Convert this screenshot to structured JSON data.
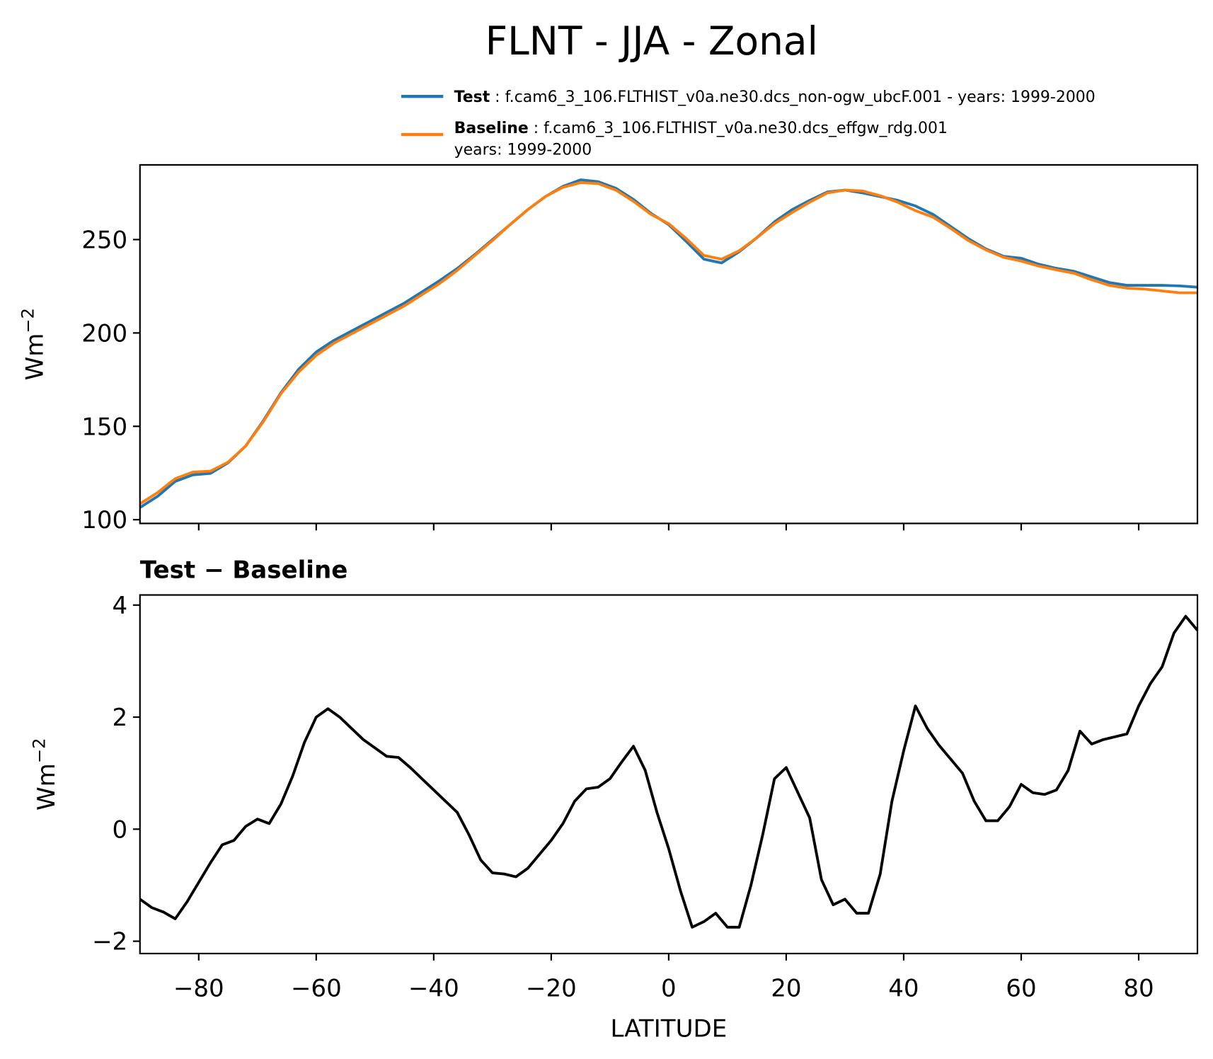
{
  "chart_data": [
    {
      "type": "line",
      "title": "FLNT - JJA - Zonal",
      "ylabel": {
        "base": "Wm",
        "sup": "−2"
      },
      "x": [
        -90,
        -87,
        -84,
        -81,
        -78,
        -75,
        -72,
        -69,
        -66,
        -63,
        -60,
        -57,
        -54,
        -51,
        -48,
        -45,
        -42,
        -39,
        -36,
        -33,
        -30,
        -27,
        -24,
        -21,
        -18,
        -15,
        -12,
        -9,
        -6,
        -3,
        0,
        3,
        6,
        9,
        12,
        15,
        18,
        21,
        24,
        27,
        30,
        33,
        36,
        39,
        42,
        45,
        48,
        51,
        54,
        57,
        60,
        63,
        66,
        69,
        72,
        75,
        78,
        81,
        84,
        87,
        90
      ],
      "series": [
        {
          "name": "Test",
          "legend_text": [
            "f.cam6_3_106.FLTHIST_v0a.ne30.dcs_non-ogw_ubcF.001 - years: 1999-2000"
          ],
          "color": "#1f77b4",
          "values": [
            106.5,
            112.5,
            120.5,
            124,
            124.8,
            130.5,
            139.5,
            153,
            168,
            180.5,
            189.8,
            196,
            201,
            206,
            211,
            216,
            222,
            228,
            234.5,
            242,
            250,
            258,
            266,
            273,
            278.5,
            282,
            281,
            277.5,
            271.5,
            264,
            258,
            249,
            239.5,
            237.5,
            243.5,
            251,
            259.5,
            266,
            271,
            275.5,
            276.5,
            275,
            273,
            271,
            268,
            263.5,
            257,
            250.5,
            245,
            241,
            240,
            236.8,
            234.6,
            233,
            230,
            227,
            225.5,
            225.5,
            225.5,
            225.2,
            224.5
          ]
        },
        {
          "name": "Baseline",
          "legend_text": [
            "f.cam6_3_106.FLTHIST_v0a.ne30.dcs_effgw_rdg.001",
            "years: 1999-2000"
          ],
          "color": "#ff7f0e",
          "values": [
            108.5,
            114.5,
            122,
            125.5,
            126,
            130.8,
            139.5,
            152.5,
            167.5,
            179,
            188,
            194.5,
            199.5,
            204.5,
            209.5,
            214.5,
            220.5,
            226.5,
            233.5,
            241.5,
            249.5,
            258,
            266,
            273,
            278,
            280.5,
            280,
            276.5,
            270.5,
            263.5,
            258.5,
            250.5,
            241.5,
            239.5,
            244,
            251,
            258.5,
            264.5,
            270,
            275,
            276.5,
            276,
            273.5,
            270,
            265.5,
            262,
            256,
            249.5,
            244.5,
            240.5,
            238.5,
            235.8,
            233.8,
            232,
            228.5,
            225.5,
            224,
            223.5,
            222.5,
            221.5,
            221.5
          ]
        }
      ],
      "ylim": [
        98,
        290
      ],
      "yticks": [
        100,
        150,
        200,
        250
      ],
      "xlim": [
        -90,
        90
      ],
      "xticks": [
        -80,
        -60,
        -40,
        -20,
        0,
        20,
        40,
        60,
        80
      ]
    },
    {
      "type": "line",
      "title": "Test − Baseline",
      "ylabel": {
        "base": "Wm",
        "sup": "−2"
      },
      "xlabel": "LATITUDE",
      "x": [
        -90,
        -88,
        -86,
        -84,
        -82,
        -80,
        -78,
        -76,
        -74,
        -72,
        -70,
        -68,
        -66,
        -64,
        -62,
        -60,
        -58,
        -56,
        -54,
        -52,
        -50,
        -48,
        -46,
        -44,
        -42,
        -40,
        -38,
        -36,
        -34,
        -32,
        -30,
        -28,
        -26,
        -24,
        -22,
        -20,
        -18,
        -16,
        -14,
        -12,
        -10,
        -8,
        -6,
        -4,
        -2,
        0,
        2,
        4,
        6,
        8,
        10,
        12,
        14,
        16,
        18,
        20,
        22,
        24,
        26,
        28,
        30,
        32,
        34,
        36,
        38,
        40,
        42,
        44,
        46,
        48,
        50,
        52,
        54,
        56,
        58,
        60,
        62,
        64,
        66,
        68,
        70,
        72,
        74,
        76,
        78,
        80,
        82,
        84,
        86,
        88,
        90
      ],
      "series": [
        {
          "color": "#000000",
          "values": [
            -1.25,
            -1.4,
            -1.48,
            -1.6,
            -1.3,
            -0.95,
            -0.6,
            -0.28,
            -0.2,
            0.05,
            0.18,
            0.1,
            0.45,
            0.95,
            1.55,
            2.0,
            2.15,
            2.0,
            1.8,
            1.6,
            1.45,
            1.3,
            1.28,
            1.1,
            0.9,
            0.7,
            0.5,
            0.3,
            -0.1,
            -0.55,
            -0.78,
            -0.8,
            -0.85,
            -0.7,
            -0.45,
            -0.2,
            0.1,
            0.5,
            0.72,
            0.75,
            0.9,
            1.2,
            1.48,
            1.05,
            0.3,
            -0.35,
            -1.1,
            -1.75,
            -1.65,
            -1.5,
            -1.75,
            -1.75,
            -1.0,
            -0.1,
            0.9,
            1.1,
            0.65,
            0.2,
            -0.9,
            -1.35,
            -1.25,
            -1.5,
            -1.5,
            -0.8,
            0.5,
            1.4,
            2.2,
            1.8,
            1.5,
            1.25,
            1.0,
            0.5,
            0.15,
            0.15,
            0.4,
            0.8,
            0.65,
            0.62,
            0.7,
            1.05,
            1.75,
            1.52,
            1.6,
            1.65,
            1.7,
            2.2,
            2.6,
            2.9,
            3.5,
            3.8,
            3.55
          ]
        }
      ],
      "ylim": [
        -2.22,
        4.18
      ],
      "yticks": [
        {
          "value": -2,
          "label": "−2"
        },
        0,
        2,
        4
      ],
      "xlim": [
        -90,
        90
      ],
      "xticks": [
        {
          "value": -80,
          "label": "−80"
        },
        {
          "value": -60,
          "label": "−60"
        },
        {
          "value": -40,
          "label": "−40"
        },
        {
          "value": -20,
          "label": "−20"
        },
        0,
        20,
        40,
        60,
        80
      ]
    }
  ]
}
